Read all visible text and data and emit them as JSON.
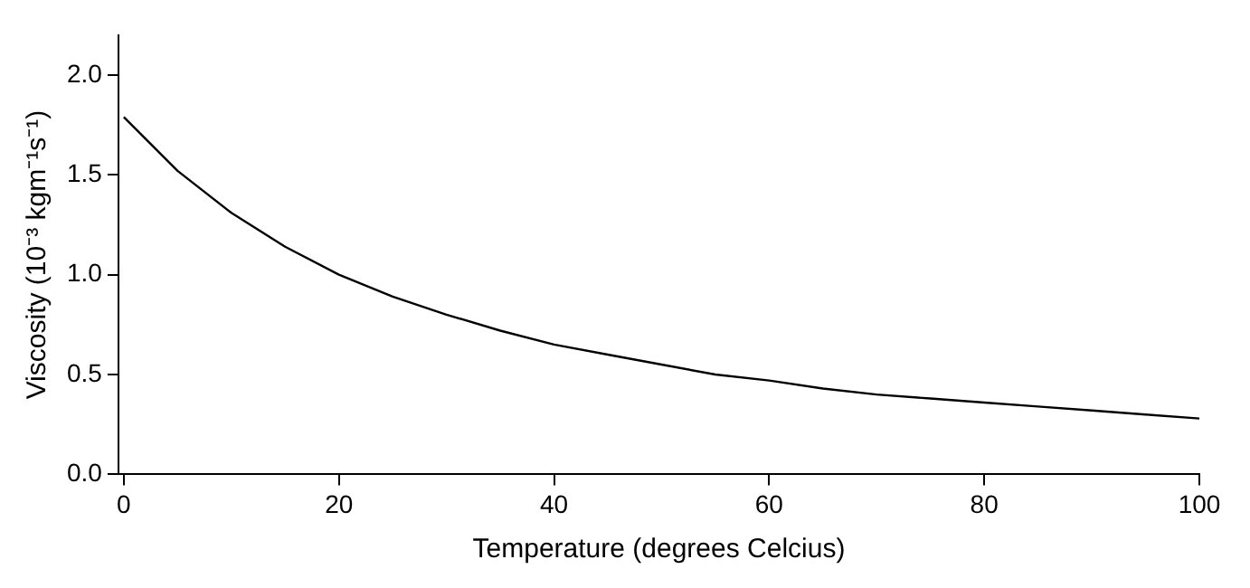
{
  "chart_data": {
    "type": "line",
    "xlabel": "Temperature (degrees Celcius)",
    "ylabel": "Viscosity (10⁻³ kgm⁻¹s⁻¹)",
    "x": [
      0,
      5,
      10,
      15,
      20,
      25,
      30,
      35,
      40,
      45,
      50,
      55,
      60,
      65,
      70,
      75,
      80,
      85,
      90,
      95,
      100
    ],
    "series": [
      {
        "color": "#000000",
        "values": [
          1.79,
          1.52,
          1.31,
          1.14,
          1.0,
          0.89,
          0.8,
          0.72,
          0.65,
          0.6,
          0.55,
          0.5,
          0.47,
          0.43,
          0.4,
          0.38,
          0.36,
          0.34,
          0.32,
          0.3,
          0.28
        ]
      }
    ],
    "xlim": [
      -0.5,
      100
    ],
    "ylim": [
      0,
      2.2
    ],
    "xticks": [
      0,
      20,
      40,
      60,
      80,
      100
    ],
    "yticks": [
      {
        "value": 0,
        "label": "0.0"
      },
      {
        "value": 0.5,
        "label": "0.5"
      },
      {
        "value": 1,
        "label": "1.0"
      },
      {
        "value": 1.5,
        "label": "1.5"
      },
      {
        "value": 2,
        "label": "2.0"
      }
    ],
    "grid": false,
    "legend": false,
    "marker": "none",
    "line_style": "solid"
  }
}
